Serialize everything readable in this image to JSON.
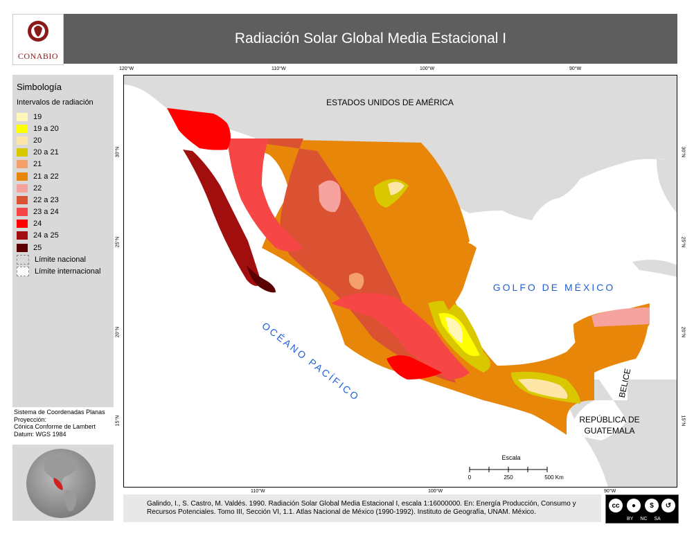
{
  "header": {
    "logo_text": "CONABIO",
    "title": "Radiación Solar Global Media Estacional I"
  },
  "legend": {
    "title": "Simbología",
    "subtitle": "Intervalos de radiación",
    "items": [
      {
        "label": "19",
        "color": "#fff6b8"
      },
      {
        "label": "19 a 20",
        "color": "#ffff00"
      },
      {
        "label": "20",
        "color": "#fde6a8"
      },
      {
        "label": "20 a 21",
        "color": "#d9c800"
      },
      {
        "label": "21",
        "color": "#f4a06a"
      },
      {
        "label": "21 a 22",
        "color": "#e8860a"
      },
      {
        "label": "22",
        "color": "#f6a3a0"
      },
      {
        "label": "22 a 23",
        "color": "#db5233"
      },
      {
        "label": "23 a 24",
        "color": "#f64646"
      },
      {
        "label": "24",
        "color": "#ff0000"
      },
      {
        "label": "24 a 25",
        "color": "#a00e0e"
      },
      {
        "label": "25",
        "color": "#5a0000"
      },
      {
        "label": "Límite nacional",
        "color": "#d9d9d9"
      },
      {
        "label": "Límite internacional",
        "color": "#ffffff"
      }
    ]
  },
  "coordinate_system": {
    "lines": [
      "Sistema de Coordenadas Planas",
      "Proyección:",
      "Cónica Conforme de Lambert",
      "Datum: WGS 1984"
    ]
  },
  "map": {
    "top_ticks": [
      "120°W",
      "110°W",
      "100°W",
      "90°W"
    ],
    "bottom_ticks": [
      "110°W",
      "100°W",
      "90°W"
    ],
    "left_ticks": [
      "30°N",
      "25°N",
      "20°N",
      "15°N"
    ],
    "right_ticks": [
      "30°N",
      "25°N",
      "20°N",
      "15°N"
    ],
    "labels": {
      "usa": "ESTADOS UNIDOS DE AMÉRICA",
      "gulf": "GOLFO DE MÉXICO",
      "pacific": "OCÉANO PACÍFICO",
      "belize": "BELICE",
      "guatemala_line1": "REPÚBLICA DE",
      "guatemala_line2": "GUATEMALA"
    },
    "scale": {
      "title": "Escala",
      "ticks": [
        "0",
        "250",
        "500 Km"
      ]
    },
    "colors": {
      "land": "#d9d9d9",
      "ocean": "#ffffff",
      "text_blue": "#1f5fd6"
    }
  },
  "footer": {
    "citation": "Galindo, I., S. Castro, M. Valdés. 1990. Radiación Solar Global Media Estacional I, escala 1:16000000. En: Energía Producción, Consumo y Recursos Potenciales. Tomo III, Sección VI, 1.1. Atlas Nacional de México (1990-1992). Instituto de Geografía, UNAM. México.",
    "license": {
      "cc": "cc",
      "labels": [
        "BY",
        "NC",
        "SA"
      ]
    }
  }
}
